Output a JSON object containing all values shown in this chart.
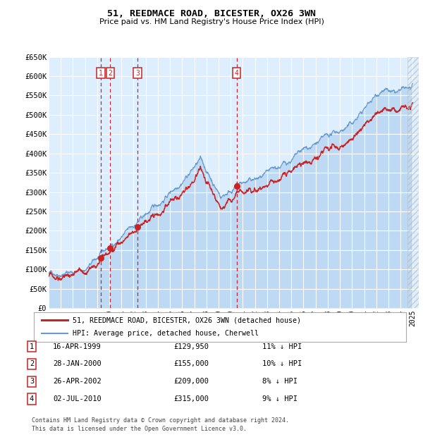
{
  "title": "51, REEDMACE ROAD, BICESTER, OX26 3WN",
  "subtitle": "Price paid vs. HM Land Registry's House Price Index (HPI)",
  "background_color": "#ffffff",
  "plot_bg_color": "#ddeeff",
  "grid_color": "#ffffff",
  "hpi_line_color": "#6699cc",
  "hpi_fill_color": "#aaccee",
  "price_line_color": "#cc2222",
  "transactions": [
    {
      "label": "1",
      "date": "1999-04-16",
      "price": 129950,
      "x_year": 1999.29
    },
    {
      "label": "2",
      "date": "2000-01-28",
      "price": 155000,
      "x_year": 2000.08
    },
    {
      "label": "3",
      "date": "2002-04-26",
      "price": 209000,
      "x_year": 2002.32
    },
    {
      "label": "4",
      "date": "2010-07-02",
      "price": 315000,
      "x_year": 2010.5
    }
  ],
  "legend_entries": [
    {
      "label": "51, REEDMACE ROAD, BICESTER, OX26 3WN (detached house)",
      "color": "#cc2222"
    },
    {
      "label": "HPI: Average price, detached house, Cherwell",
      "color": "#6699cc"
    }
  ],
  "table_rows": [
    {
      "num": "1",
      "date": "16-APR-1999",
      "price": "£129,950",
      "note": "11% ↓ HPI"
    },
    {
      "num": "2",
      "date": "28-JAN-2000",
      "price": "£155,000",
      "note": "10% ↓ HPI"
    },
    {
      "num": "3",
      "date": "26-APR-2002",
      "price": "£209,000",
      "note": "8% ↓ HPI"
    },
    {
      "num": "4",
      "date": "02-JUL-2010",
      "price": "£315,000",
      "note": "9% ↓ HPI"
    }
  ],
  "footer": "Contains HM Land Registry data © Crown copyright and database right 2024.\nThis data is licensed under the Open Government Licence v3.0.",
  "ylim": [
    0,
    650000
  ],
  "yticks": [
    0,
    50000,
    100000,
    150000,
    200000,
    250000,
    300000,
    350000,
    400000,
    450000,
    500000,
    550000,
    600000,
    650000
  ],
  "xlim_start": 1995.0,
  "xlim_end": 2025.5,
  "hatch_start": 2024.58
}
